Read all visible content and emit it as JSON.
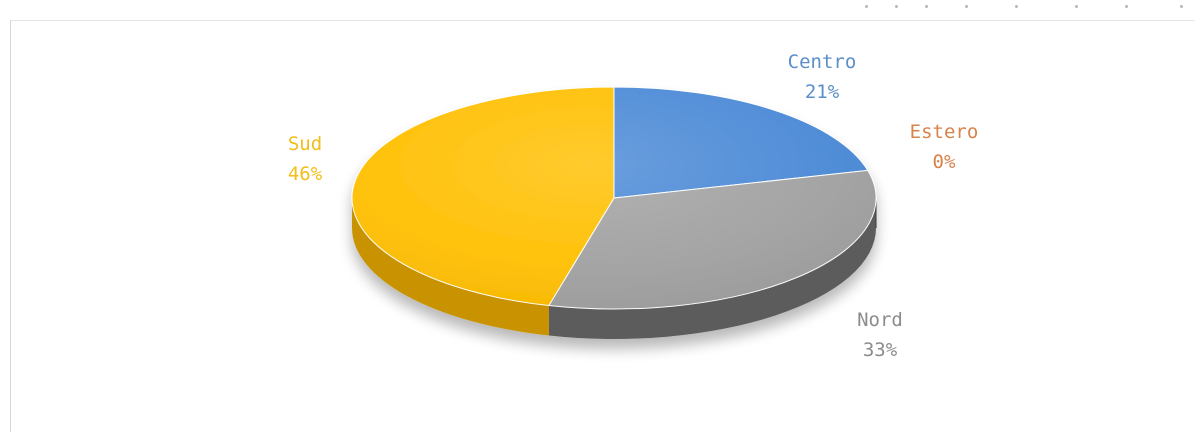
{
  "chart_data": {
    "type": "pie",
    "title": "",
    "slices": [
      {
        "name": "Centro",
        "value": 21,
        "label": "21%",
        "color": "#4a89d6",
        "side_color": "#2f6aad",
        "text_color": "#5b8fc9"
      },
      {
        "name": "Estero",
        "value": 0,
        "label": "0%",
        "color": "#f0843a",
        "side_color": "#b85f22",
        "text_color": "#d9824a"
      },
      {
        "name": "Nord",
        "value": 33,
        "label": "33%",
        "color": "#a1a1a1",
        "side_color": "#5b5b5b",
        "text_color": "#8c8c8c"
      },
      {
        "name": "Sud",
        "value": 46,
        "label": "46%",
        "color": "#ffbf00",
        "side_color": "#c99200",
        "text_color": "#f2be18"
      }
    ],
    "style": "3d-pie",
    "legend": "none"
  }
}
